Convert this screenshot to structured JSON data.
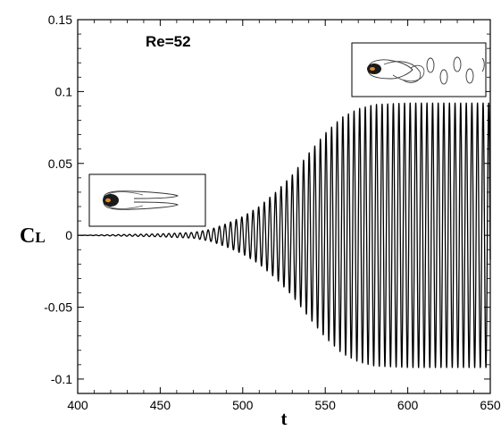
{
  "chart_data": {
    "type": "line",
    "title": "",
    "xlabel": "t",
    "ylabel_main": "C",
    "ylabel_sub": "L",
    "xlim": [
      400,
      650
    ],
    "ylim": [
      -0.11,
      0.15
    ],
    "x_ticks": [
      400,
      450,
      500,
      550,
      600,
      650
    ],
    "x_tick_labels": [
      "400",
      "450",
      "500",
      "550",
      "600",
      "650"
    ],
    "y_ticks": [
      -0.1,
      -0.05,
      0,
      0.05,
      0.1,
      0.15
    ],
    "y_tick_labels": [
      "-0.1",
      "-0.05",
      "0",
      "0.05",
      "0.1",
      "0.15"
    ],
    "annotations": [
      {
        "text": "Re=52"
      }
    ],
    "series": [
      {
        "oscillation_period": 3.4,
        "envelope_t": [
          400,
          450,
          470,
          480,
          490,
          500,
          510,
          520,
          530,
          540,
          550,
          560,
          570,
          580,
          600,
          650
        ],
        "envelope_amplitude": [
          0,
          0.001,
          0.002,
          0.004,
          0.008,
          0.013,
          0.02,
          0.03,
          0.042,
          0.057,
          0.071,
          0.082,
          0.088,
          0.091,
          0.092,
          0.092
        ],
        "envelope_bottom_amplitude": [
          0,
          0.001,
          0.002,
          0.004,
          0.008,
          0.013,
          0.02,
          0.03,
          0.042,
          0.057,
          0.071,
          0.082,
          0.088,
          0.091,
          0.092,
          0.092
        ]
      }
    ],
    "grid": false,
    "legend": "none",
    "insets": [
      {
        "description_icon": "steady-wake-vorticity-contour-icon",
        "position": "left"
      },
      {
        "description_icon": "vortex-shedding-contour-icon",
        "position": "top-right"
      }
    ]
  }
}
